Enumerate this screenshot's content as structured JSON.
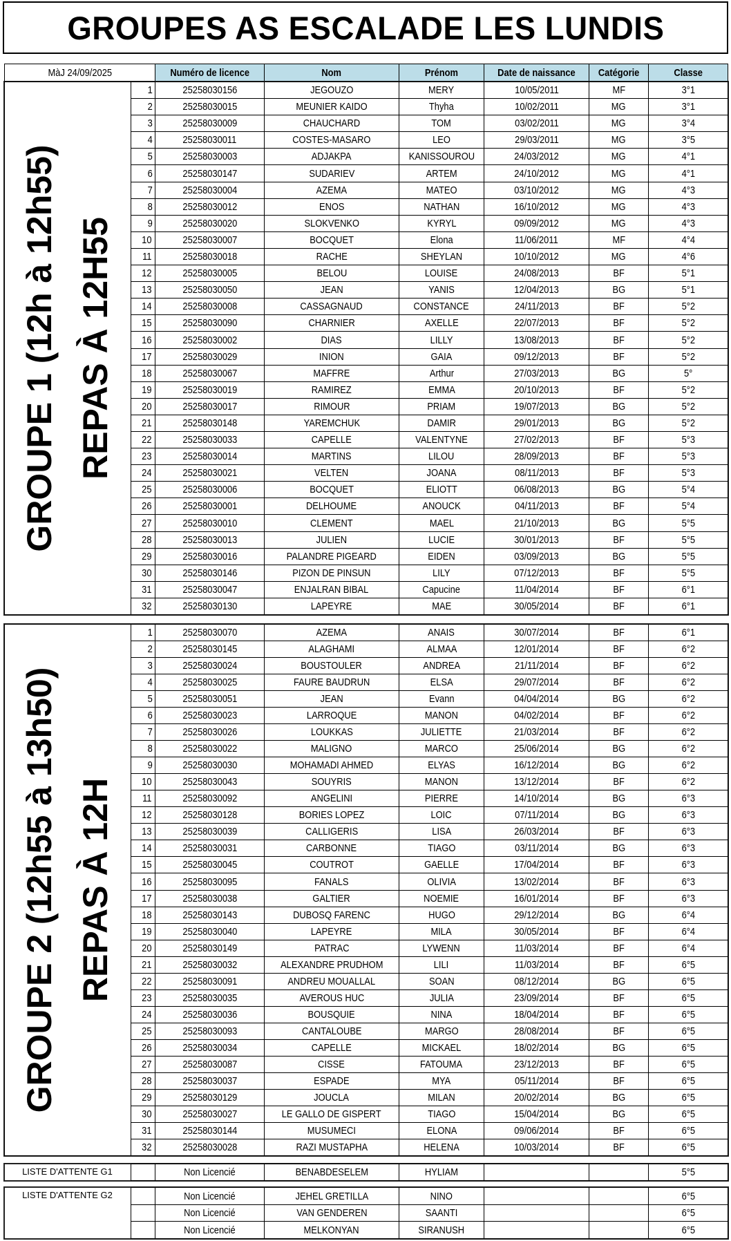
{
  "title": "GROUPES AS ESCALADE LES LUNDIS",
  "updated": "MàJ 24/09/2025",
  "headers": [
    "Numéro de licence",
    "Nom",
    "Prénom",
    "Date de naissance",
    "Catégorie",
    "Classe"
  ],
  "colors": {
    "header_bg": "#bcdde8",
    "border": "#000000"
  },
  "groups": [
    {
      "label_line1": "GROUPE 1 (12h à 12h55)",
      "label_line2": "REPAS À 12H55",
      "rows": [
        [
          "1",
          "25258030156",
          "JEGOUZO",
          "MERY",
          "10/05/2011",
          "MF",
          "3°1"
        ],
        [
          "2",
          "25258030015",
          "MEUNIER KAIDO",
          "Thyha",
          "10/02/2011",
          "MG",
          "3°1"
        ],
        [
          "3",
          "25258030009",
          "CHAUCHARD",
          "TOM",
          "03/02/2011",
          "MG",
          "3°4"
        ],
        [
          "4",
          "25258030011",
          "COSTES-MASARO",
          "LEO",
          "29/03/2011",
          "MG",
          "3°5"
        ],
        [
          "5",
          "25258030003",
          "ADJAKPA",
          "KANISSOUROU",
          "24/03/2012",
          "MG",
          "4°1"
        ],
        [
          "6",
          "25258030147",
          "SUDARIEV",
          "ARTEM",
          "24/10/2012",
          "MG",
          "4°1"
        ],
        [
          "7",
          "25258030004",
          "AZEMA",
          "MATEO",
          "03/10/2012",
          "MG",
          "4°3"
        ],
        [
          "8",
          "25258030012",
          "ENOS",
          "NATHAN",
          "16/10/2012",
          "MG",
          "4°3"
        ],
        [
          "9",
          "25258030020",
          "SLOKVENKO",
          "KYRYL",
          "09/09/2012",
          "MG",
          "4°3"
        ],
        [
          "10",
          "25258030007",
          "BOCQUET",
          "Elona",
          "11/06/2011",
          "MF",
          "4°4"
        ],
        [
          "11",
          "25258030018",
          "RACHE",
          "SHEYLAN",
          "10/10/2012",
          "MG",
          "4°6"
        ],
        [
          "12",
          "25258030005",
          "BELOU",
          "LOUISE",
          "24/08/2013",
          "BF",
          "5°1"
        ],
        [
          "13",
          "25258030050",
          "JEAN",
          "YANIS",
          "12/04/2013",
          "BG",
          "5°1"
        ],
        [
          "14",
          "25258030008",
          "CASSAGNAUD",
          "CONSTANCE",
          "24/11/2013",
          "BF",
          "5°2"
        ],
        [
          "15",
          "25258030090",
          "CHARNIER",
          "AXELLE",
          "22/07/2013",
          "BF",
          "5°2"
        ],
        [
          "16",
          "25258030002",
          "DIAS",
          "LILLY",
          "13/08/2013",
          "BF",
          "5°2"
        ],
        [
          "17",
          "25258030029",
          "INION",
          "GAIA",
          "09/12/2013",
          "BF",
          "5°2"
        ],
        [
          "18",
          "25258030067",
          "MAFFRE",
          "Arthur",
          "27/03/2013",
          "BG",
          "5°"
        ],
        [
          "19",
          "25258030019",
          "RAMIREZ",
          "EMMA",
          "20/10/2013",
          "BF",
          "5°2"
        ],
        [
          "20",
          "25258030017",
          "RIMOUR",
          "PRIAM",
          "19/07/2013",
          "BG",
          "5°2"
        ],
        [
          "21",
          "25258030148",
          "YAREMCHUK",
          "DAMIR",
          "29/01/2013",
          "BG",
          "5°2"
        ],
        [
          "22",
          "25258030033",
          "CAPELLE",
          "VALENTYNE",
          "27/02/2013",
          "BF",
          "5°3"
        ],
        [
          "23",
          "25258030014",
          "MARTINS",
          "LILOU",
          "28/09/2013",
          "BF",
          "5°3"
        ],
        [
          "24",
          "25258030021",
          "VELTEN",
          "JOANA",
          "08/11/2013",
          "BF",
          "5°3"
        ],
        [
          "25",
          "25258030006",
          "BOCQUET",
          "ELIOTT",
          "06/08/2013",
          "BG",
          "5°4"
        ],
        [
          "26",
          "25258030001",
          "DELHOUME",
          "ANOUCK",
          "04/11/2013",
          "BF",
          "5°4"
        ],
        [
          "27",
          "25258030010",
          "CLEMENT",
          "MAEL",
          "21/10/2013",
          "BG",
          "5°5"
        ],
        [
          "28",
          "25258030013",
          "JULIEN",
          "LUCIE",
          "30/01/2013",
          "BF",
          "5°5"
        ],
        [
          "29",
          "25258030016",
          "PALANDRE PIGEARD",
          "EIDEN",
          "03/09/2013",
          "BG",
          "5°5"
        ],
        [
          "30",
          "25258030146",
          "PIZON DE PINSUN",
          "LILY",
          "07/12/2013",
          "BF",
          "5°5"
        ],
        [
          "31",
          "25258030047",
          "ENJALRAN BIBAL",
          "Capucine",
          "11/04/2014",
          "BF",
          "6°1"
        ],
        [
          "32",
          "25258030130",
          "LAPEYRE",
          "MAE",
          "30/05/2014",
          "BF",
          "6°1"
        ]
      ]
    },
    {
      "label_line1": "GROUPE 2 (12h55  à 13h50)",
      "label_line2": "REPAS À 12H",
      "rows": [
        [
          "1",
          "25258030070",
          "AZEMA",
          "ANAIS",
          "30/07/2014",
          "BF",
          "6°1"
        ],
        [
          "2",
          "25258030145",
          "ALAGHAMI",
          "ALMAA",
          "12/01/2014",
          "BF",
          "6°2"
        ],
        [
          "3",
          "25258030024",
          "BOUSTOULER",
          "ANDREA",
          "21/11/2014",
          "BF",
          "6°2"
        ],
        [
          "4",
          "25258030025",
          "FAURE BAUDRUN",
          "ELSA",
          "29/07/2014",
          "BF",
          "6°2"
        ],
        [
          "5",
          "25258030051",
          "JEAN",
          "Evann",
          "04/04/2014",
          "BG",
          "6°2"
        ],
        [
          "6",
          "25258030023",
          "LARROQUE",
          "MANON",
          "04/02/2014",
          "BF",
          "6°2"
        ],
        [
          "7",
          "25258030026",
          "LOUKKAS",
          "JULIETTE",
          "21/03/2014",
          "BF",
          "6°2"
        ],
        [
          "8",
          "25258030022",
          "MALIGNO",
          "MARCO",
          "25/06/2014",
          "BG",
          "6°2"
        ],
        [
          "9",
          "25258030030",
          "MOHAMADI AHMED",
          "ELYAS",
          "16/12/2014",
          "BG",
          "6°2"
        ],
        [
          "10",
          "25258030043",
          "SOUYRIS",
          "MANON",
          "13/12/2014",
          "BF",
          "6°2"
        ],
        [
          "11",
          "25258030092",
          "ANGELINI",
          "PIERRE",
          "14/10/2014",
          "BG",
          "6°3"
        ],
        [
          "12",
          "25258030128",
          "BORIES LOPEZ",
          "LOIC",
          "07/11/2014",
          "BG",
          "6°3"
        ],
        [
          "13",
          "25258030039",
          "CALLIGERIS",
          "LISA",
          "26/03/2014",
          "BF",
          "6°3"
        ],
        [
          "14",
          "25258030031",
          "CARBONNE",
          "TIAGO",
          "03/11/2014",
          "BG",
          "6°3"
        ],
        [
          "15",
          "25258030045",
          "COUTROT",
          "GAELLE",
          "17/04/2014",
          "BF",
          "6°3"
        ],
        [
          "16",
          "25258030095",
          "FANALS",
          "OLIVIA",
          "13/02/2014",
          "BF",
          "6°3"
        ],
        [
          "17",
          "25258030038",
          "GALTIER",
          "NOEMIE",
          "16/01/2014",
          "BF",
          "6°3"
        ],
        [
          "18",
          "25258030143",
          "DUBOSQ FARENC",
          "HUGO",
          "29/12/2014",
          "BG",
          "6°4"
        ],
        [
          "19",
          "25258030040",
          "LAPEYRE",
          "MILA",
          "30/05/2014",
          "BF",
          "6°4"
        ],
        [
          "20",
          "25258030149",
          "PATRAC",
          "LYWENN",
          "11/03/2014",
          "BF",
          "6°4"
        ],
        [
          "21",
          "25258030032",
          "ALEXANDRE PRUDHOM",
          "LILI",
          "11/03/2014",
          "BF",
          "6°5"
        ],
        [
          "22",
          "25258030091",
          "ANDREU MOUALLAL",
          "SOAN",
          "08/12/2014",
          "BG",
          "6°5"
        ],
        [
          "23",
          "25258030035",
          "AVEROUS HUC",
          "JULIA",
          "23/09/2014",
          "BF",
          "6°5"
        ],
        [
          "24",
          "25258030036",
          "BOUSQUIE",
          "NINA",
          "18/04/2014",
          "BF",
          "6°5"
        ],
        [
          "25",
          "25258030093",
          "CANTALOUBE",
          "MARGO",
          "28/08/2014",
          "BF",
          "6°5"
        ],
        [
          "26",
          "25258030034",
          "CAPELLE",
          "MICKAEL",
          "18/02/2014",
          "BG",
          "6°5"
        ],
        [
          "27",
          "25258030087",
          "CISSE",
          "FATOUMA",
          "23/12/2013",
          "BF",
          "6°5"
        ],
        [
          "28",
          "25258030037",
          "ESPADE",
          "MYA",
          "05/11/2014",
          "BF",
          "6°5"
        ],
        [
          "29",
          "25258030129",
          "JOUCLA",
          "MILAN",
          "20/02/2014",
          "BG",
          "6°5"
        ],
        [
          "30",
          "25258030027",
          "LE GALLO DE GISPERT",
          "TIAGO",
          "15/04/2014",
          "BG",
          "6°5"
        ],
        [
          "31",
          "25258030144",
          "MUSUMECI",
          "ELONA",
          "09/06/2014",
          "BF",
          "6°5"
        ],
        [
          "32",
          "25258030028",
          "RAZI MUSTAPHA",
          "HELENA",
          "10/03/2014",
          "BF",
          "6°5"
        ]
      ]
    }
  ],
  "waitlists": [
    {
      "label": "LISTE D'ATTENTE G1",
      "rows": [
        [
          "",
          "Non Licencié",
          "BENABDESELEM",
          "HYLIAM",
          "",
          "",
          "5°5"
        ]
      ]
    },
    {
      "label": "LISTE D'ATTENTE G2",
      "rows": [
        [
          "",
          "Non Licencié",
          "JEHEL GRETILLA",
          "NINO",
          "",
          "",
          "6°5"
        ],
        [
          "",
          "Non Licencié",
          "VAN GENDEREN",
          "SAANTI",
          "",
          "",
          "6°5"
        ],
        [
          "",
          "Non Licencié",
          "MELKONYAN",
          "SIRANUSH",
          "",
          "",
          "6°5"
        ]
      ]
    }
  ]
}
